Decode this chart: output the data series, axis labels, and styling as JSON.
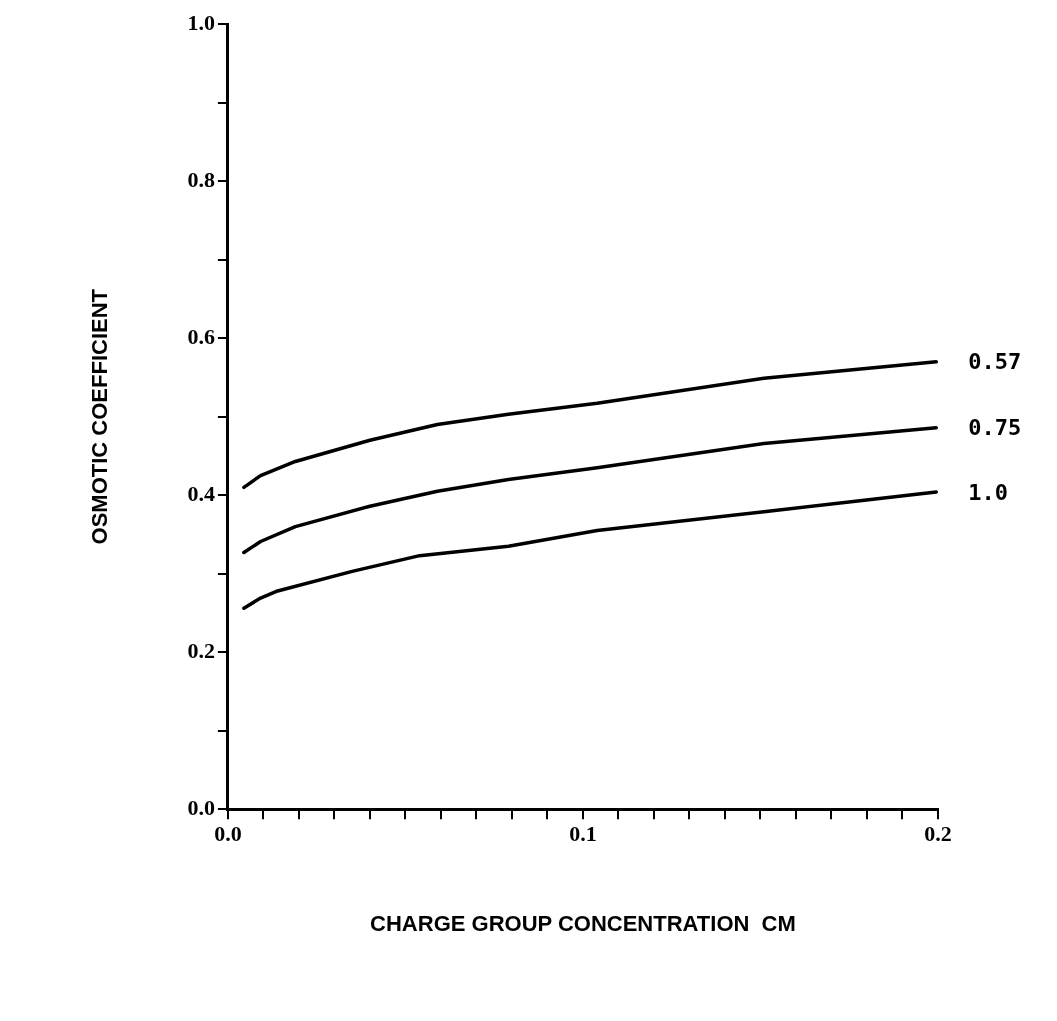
{
  "chart_data": {
    "type": "line",
    "xlabel": "CHARGE GROUP CONCENTRATION  CM",
    "ylabel": "OSMOTIC COEFFICIENT",
    "xlim": [
      0,
      0.2
    ],
    "ylim": [
      0,
      1
    ],
    "xticks": [
      {
        "value": 0,
        "label": "0.0"
      },
      {
        "value": 0.01,
        "label": null
      },
      {
        "value": 0.02,
        "label": null
      },
      {
        "value": 0.03,
        "label": null
      },
      {
        "value": 0.04,
        "label": null
      },
      {
        "value": 0.05,
        "label": null
      },
      {
        "value": 0.06,
        "label": null
      },
      {
        "value": 0.07,
        "label": null
      },
      {
        "value": 0.08,
        "label": null
      },
      {
        "value": 0.09,
        "label": null
      },
      0.1,
      {
        "value": 0.11,
        "label": null
      },
      {
        "value": 0.12,
        "label": null
      },
      {
        "value": 0.13,
        "label": null
      },
      {
        "value": 0.14,
        "label": null
      },
      {
        "value": 0.15,
        "label": null
      },
      {
        "value": 0.16,
        "label": null
      },
      {
        "value": 0.17,
        "label": null
      },
      {
        "value": 0.18,
        "label": null
      },
      {
        "value": 0.19,
        "label": null
      },
      0.2
    ],
    "yticks": [
      {
        "value": 0,
        "label": "0.0"
      },
      {
        "value": 0.1,
        "label": null
      },
      0.2,
      {
        "value": 0.3,
        "label": null
      },
      0.4,
      {
        "value": 0.5,
        "label": null
      },
      0.6,
      {
        "value": 0.7,
        "label": null
      },
      0.8,
      {
        "value": 0.9,
        "label": null
      },
      {
        "value": 1,
        "label": "1.0"
      }
    ],
    "grid": false,
    "legend": false,
    "marker": "none",
    "line_style": "solid",
    "series": [
      {
        "name": "0.57",
        "color": "#000000",
        "x": [
          0.0045,
          0.0092,
          0.019,
          0.04,
          0.059,
          0.079,
          0.104,
          0.151,
          0.1995
        ],
        "values": [
          0.41,
          0.425,
          0.443,
          0.47,
          0.49,
          0.503,
          0.517,
          0.549,
          0.57
        ]
      },
      {
        "name": "0.75",
        "color": "#000000",
        "x": [
          0.0045,
          0.0092,
          0.019,
          0.04,
          0.059,
          0.079,
          0.104,
          0.151,
          0.1995
        ],
        "values": [
          0.327,
          0.341,
          0.36,
          0.386,
          0.405,
          0.42,
          0.435,
          0.466,
          0.486
        ]
      },
      {
        "name": "1.0",
        "color": "#000000",
        "x": [
          0.0045,
          0.0092,
          0.014,
          0.035,
          0.054,
          0.079,
          0.104,
          0.151,
          0.178,
          0.1995
        ],
        "values": [
          0.256,
          0.269,
          0.278,
          0.303,
          0.323,
          0.335,
          0.355,
          0.379,
          0.393,
          0.404
        ]
      }
    ]
  }
}
